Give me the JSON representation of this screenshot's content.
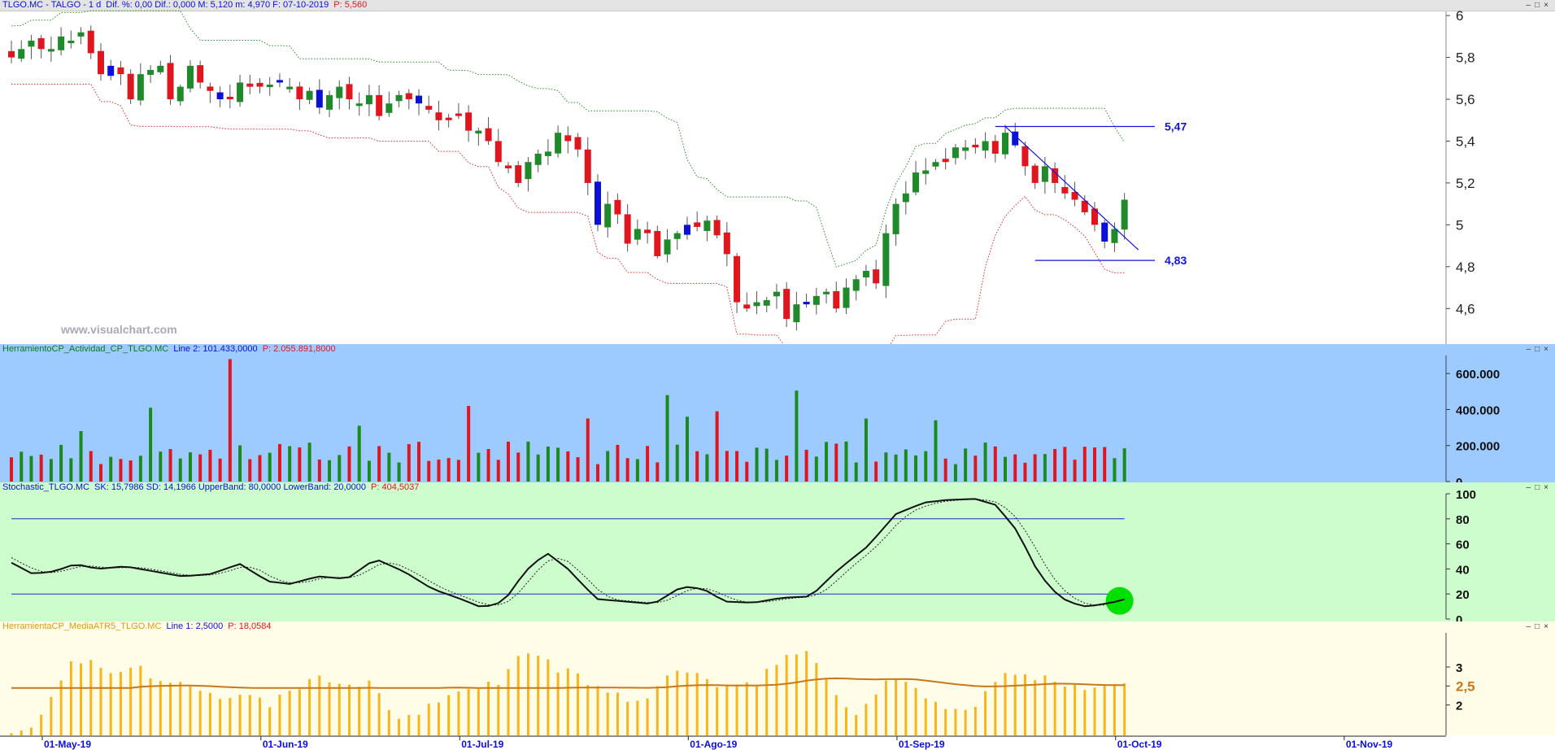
{
  "header": {
    "title": "TLGO.MC - TALGO - 1 d",
    "stats": "Dif. %: 0,00  Dif.: 0,000  M: 5,120  m: 4,970  F: 07-10-2019",
    "price": "P: 5,560"
  },
  "watermark": "www.visualchart.com",
  "window_buttons": {
    "minimize": "–",
    "restore": "□",
    "close": "×"
  },
  "panels": {
    "volume": {
      "title": "HerramientoCP_Actividad_CP_TLGO.MC",
      "line": "Line 2: 101.433,0000",
      "price": "P: 2.055.891,8000"
    },
    "stochastic": {
      "title": "Stochastic_TLGO.MC",
      "line": "SK: 15,7986  SD: 14,1966  UpperBand: 80,0000  LowerBand: 20,0000",
      "price": "P: 404,5037"
    },
    "atr": {
      "title": "HerramientaCP_MediaATR5_TLGO.MC",
      "line": "Line 1: 2,5000",
      "price": "P: 18,0584"
    }
  },
  "colors": {
    "up": "#1f8a2a",
    "down": "#e0161e",
    "neutral": "#0a10d6",
    "upper_band": "#2a8a2a",
    "lower_band": "#e02a2a",
    "volume_bg": "#9ecbff",
    "stoch_bg": "#cdfccd",
    "atr_bg": "#fffde8",
    "atr_bar": "#f7b51c",
    "atr_avg": "#c8781c",
    "highlight": "#00e000"
  },
  "chart_data": [
    {
      "type": "candlestick",
      "title": "TLGO.MC - TALGO - 1 d",
      "y_ticks": [
        "6",
        "5,8",
        "5,6",
        "5,4",
        "5,2",
        "5",
        "4,8",
        "4,6"
      ],
      "ylim": [
        4.43,
        6.02
      ],
      "x_ticks": [
        "01-May-19",
        "01-Jun-19",
        "01-Jul-19",
        "01-Ago-19",
        "01-Sep-19",
        "01-Oct-19",
        "01-Nov-19"
      ],
      "x_tick_index": [
        0,
        22,
        42,
        65,
        86,
        108,
        131
      ],
      "close": [
        5.8,
        5.84,
        5.88,
        5.84,
        5.84,
        5.9,
        5.88,
        5.92,
        5.82,
        5.72,
        5.76,
        5.72,
        5.6,
        5.72,
        5.74,
        5.76,
        5.6,
        5.66,
        5.76,
        5.68,
        5.64,
        5.6,
        5.6,
        5.68,
        5.66,
        5.66,
        5.67,
        5.68,
        5.66,
        5.6,
        5.64,
        5.56,
        5.62,
        5.66,
        5.6,
        5.58,
        5.62,
        5.52,
        5.58,
        5.62,
        5.6,
        5.58,
        5.55,
        5.5,
        5.5,
        5.52,
        5.45,
        5.45,
        5.4,
        5.3,
        5.27,
        5.2,
        5.3,
        5.34,
        5.35,
        5.44,
        5.4,
        5.36,
        5.2,
        5.0,
        5.1,
        5.05,
        4.91,
        4.98,
        4.96,
        4.85,
        4.93,
        4.96,
        5.0,
        4.99,
        5.02,
        4.95,
        4.86,
        4.63,
        4.6,
        4.63,
        4.64,
        4.68,
        4.55,
        4.62,
        4.62,
        4.66,
        4.68,
        4.6,
        4.7,
        4.74,
        4.78,
        4.72,
        4.96,
        5.1,
        5.15,
        5.25,
        5.26,
        5.3,
        5.3,
        5.37,
        5.37,
        5.37,
        5.4,
        5.34,
        5.44,
        5.38,
        5.28,
        5.2,
        5.28,
        5.2,
        5.15,
        5.12,
        5.06,
        5.0,
        4.92,
        4.98,
        5.12
      ],
      "volume": {
        "ylim": [
          0,
          700000
        ],
        "y_ticks": [
          "600.000",
          "400.000",
          "200.000",
          "0"
        ],
        "y_tick_values": [
          600000,
          400000,
          200000,
          0
        ]
      },
      "stochastic": {
        "ylim": [
          0,
          100
        ],
        "y_ticks": [
          "100",
          "80",
          "60",
          "40",
          "20",
          "0"
        ],
        "upper_band": 80,
        "lower_band": 20,
        "sk_last": 15.7986,
        "sd_last": 14.1966
      },
      "atr": {
        "ylim": [
          1.2,
          3.9
        ],
        "y_ticks": [
          "3",
          "2,5",
          "2"
        ],
        "y_tick_values": [
          3,
          2.5,
          2
        ],
        "average": 2.5
      },
      "annotations": [
        {
          "label": "5,47",
          "value": 5.47
        },
        {
          "label": "4,83",
          "value": 4.83
        }
      ]
    }
  ]
}
